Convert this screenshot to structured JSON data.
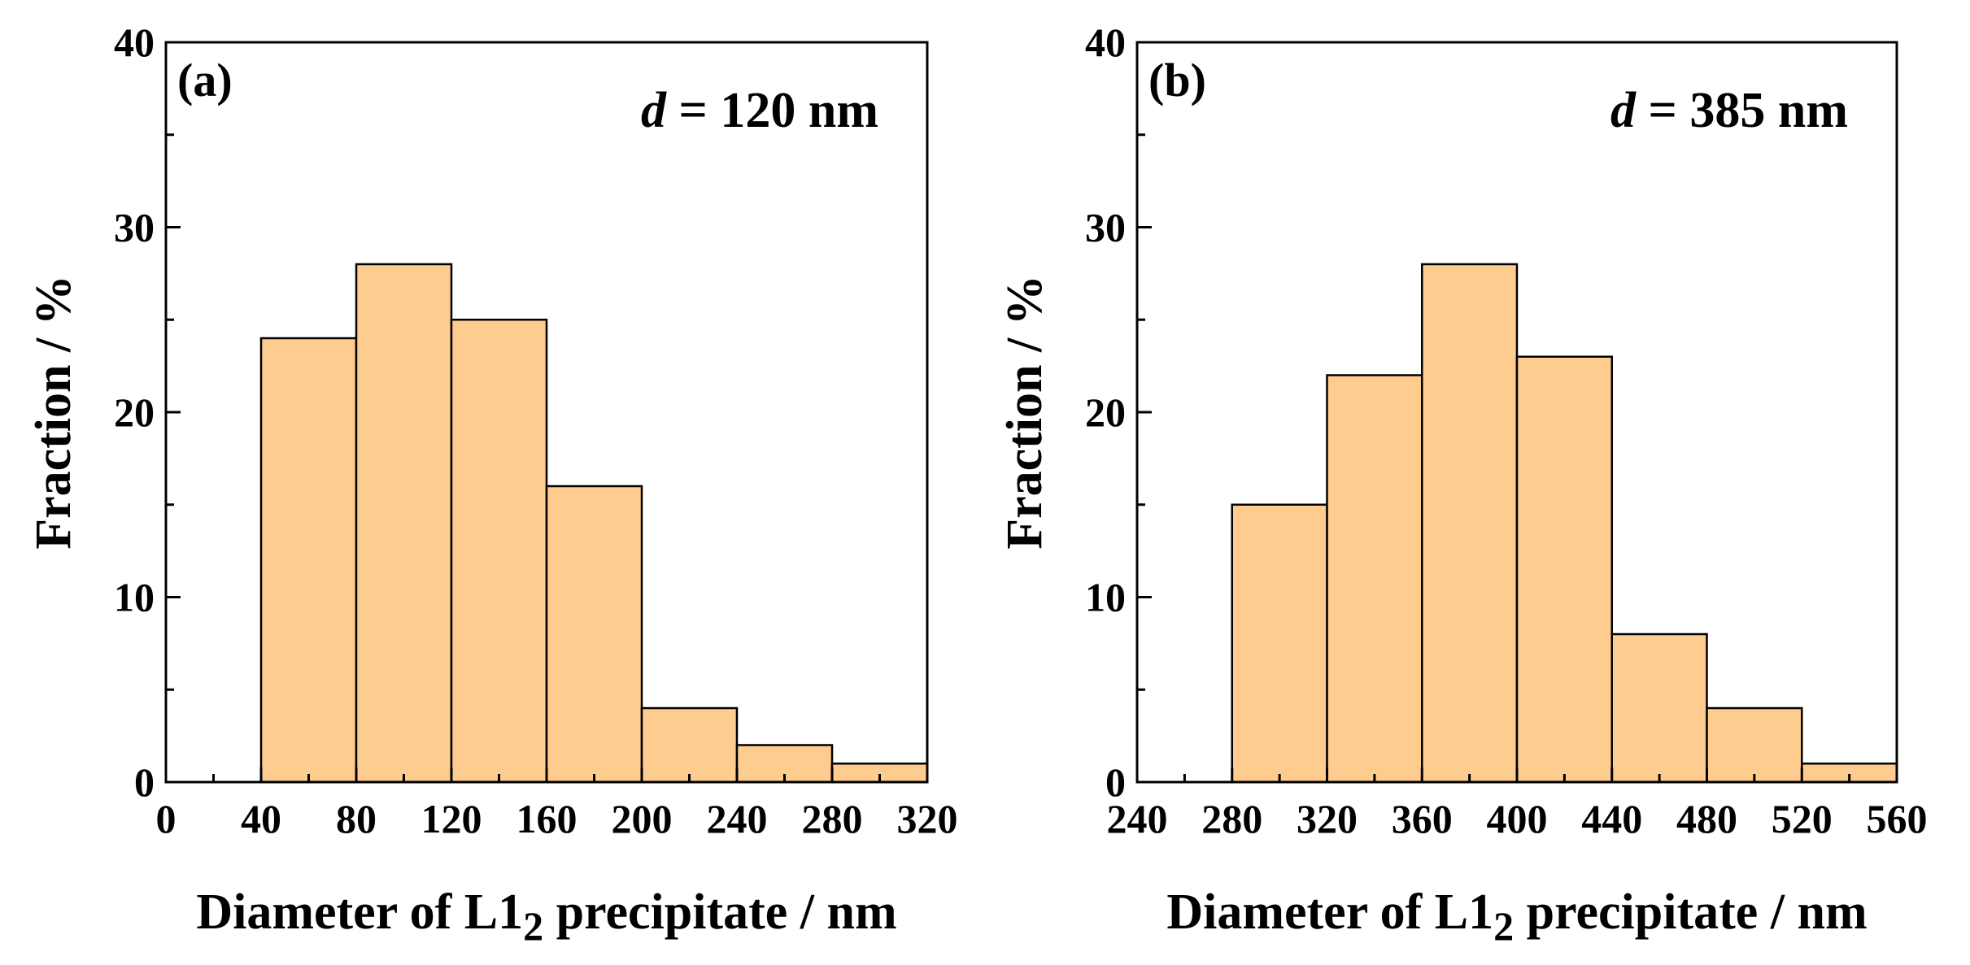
{
  "chart_data": [
    {
      "type": "bar",
      "panel_label": "(a)",
      "annotation": {
        "var": "d",
        "text": " = 120 nm"
      },
      "xlabel": "Diameter of L12 precipitate / nm",
      "xlabel_parts": {
        "main": "Diameter of L1",
        "sub": "2",
        "rest": " precipitate / nm"
      },
      "ylabel": "Fraction / %",
      "xlim": [
        0,
        320
      ],
      "ylim": [
        0,
        40
      ],
      "xticks": [
        0,
        40,
        80,
        120,
        160,
        200,
        240,
        280,
        320
      ],
      "yticks": [
        0,
        10,
        20,
        30,
        40
      ],
      "bin_edges": [
        40,
        80,
        120,
        160,
        200,
        240,
        280,
        320
      ],
      "values": [
        24,
        28,
        25,
        16,
        4,
        2,
        1
      ],
      "bar_color": "#fecc8f"
    },
    {
      "type": "bar",
      "panel_label": "(b)",
      "annotation": {
        "var": "d",
        "text": " = 385 nm"
      },
      "xlabel": "Diameter of L12 precipitate / nm",
      "xlabel_parts": {
        "main": "Diameter of L1",
        "sub": "2",
        "rest": " precipitate / nm"
      },
      "ylabel": "Fraction / %",
      "xlim": [
        240,
        560
      ],
      "ylim": [
        0,
        40
      ],
      "xticks": [
        240,
        280,
        320,
        360,
        400,
        440,
        480,
        520,
        560
      ],
      "yticks": [
        0,
        10,
        20,
        30,
        40
      ],
      "bin_edges": [
        280,
        320,
        360,
        400,
        440,
        480,
        520,
        560
      ],
      "values": [
        15,
        22,
        28,
        23,
        8,
        4,
        1
      ],
      "bar_color": "#fecc8f"
    }
  ]
}
